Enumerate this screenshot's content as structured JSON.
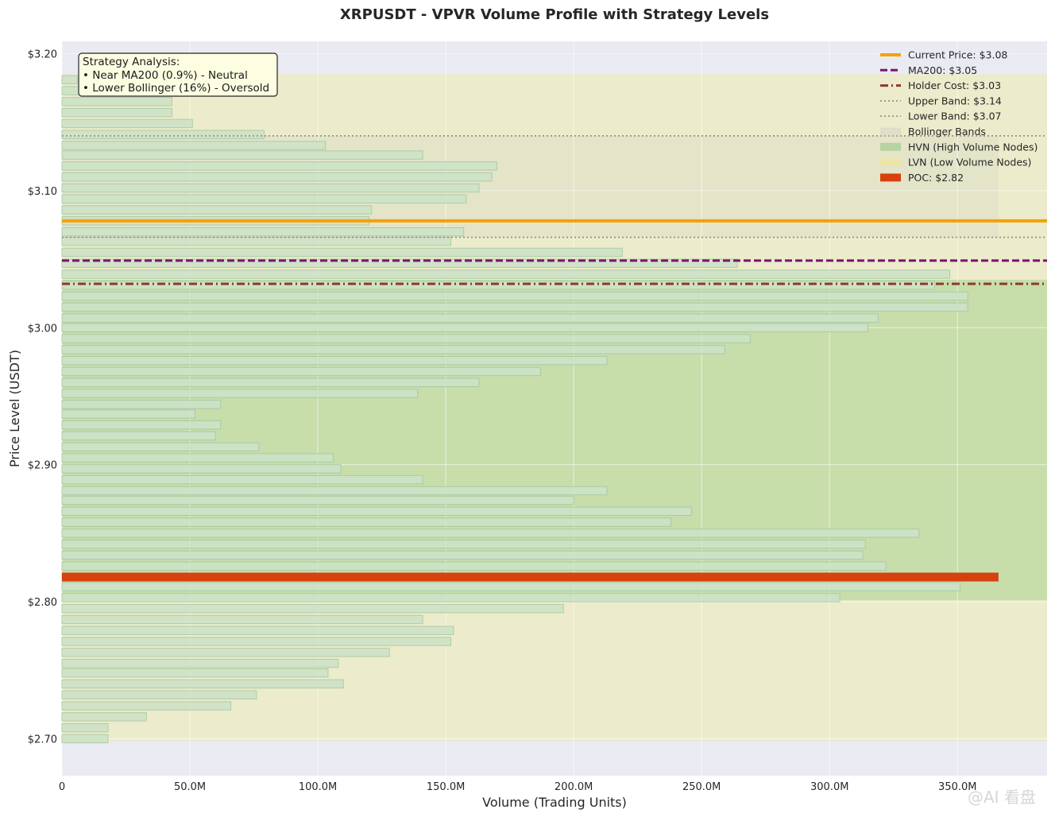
{
  "chart_data": {
    "type": "bar",
    "orientation": "horizontal",
    "title": "XRPUSDT - VPVR Volume Profile with Strategy Levels",
    "xlabel": "Volume (Trading Units)",
    "ylabel": "Price Level (USDT)",
    "xlim": [
      0,
      385
    ],
    "ylim": [
      2.673,
      3.209
    ],
    "x_unit": "millions",
    "xticks": [
      0,
      50,
      100,
      150,
      200,
      250,
      300,
      350
    ],
    "xtick_labels": [
      "0",
      "50.0M",
      "100.0M",
      "150.0M",
      "200.0M",
      "250.0M",
      "300.0M",
      "350.0M"
    ],
    "yticks": [
      2.7,
      2.8,
      2.9,
      3.0,
      3.1,
      3.2
    ],
    "ytick_labels": [
      "$2.70",
      "$2.80",
      "$2.90",
      "$3.00",
      "$3.10",
      "$3.20"
    ],
    "grid": true,
    "legend_position": "top-right",
    "volume_profile": {
      "prices": [
        2.7,
        2.708,
        2.716,
        2.724,
        2.732,
        2.74,
        2.748,
        2.755,
        2.763,
        2.771,
        2.779,
        2.787,
        2.795,
        2.803,
        2.811,
        2.818,
        2.826,
        2.834,
        2.842,
        2.85,
        2.858,
        2.866,
        2.874,
        2.881,
        2.889,
        2.897,
        2.905,
        2.913,
        2.921,
        2.929,
        2.937,
        2.944,
        2.952,
        2.96,
        2.968,
        2.976,
        2.984,
        2.992,
        3.0,
        3.007,
        3.015,
        3.023,
        3.031,
        3.039,
        3.047,
        3.055,
        3.063,
        3.07,
        3.078,
        3.086,
        3.094,
        3.102,
        3.11,
        3.118,
        3.126,
        3.133,
        3.141,
        3.149,
        3.157,
        3.165,
        3.173,
        3.181
      ],
      "volumes": [
        18,
        18,
        33,
        66,
        76,
        110,
        104,
        108,
        128,
        152,
        153,
        141,
        196,
        304,
        351,
        366,
        322,
        313,
        314,
        335,
        238,
        246,
        200,
        213,
        141,
        109,
        106,
        77,
        60,
        62,
        52,
        62,
        139,
        163,
        187,
        213,
        259,
        269,
        315,
        319,
        354,
        354,
        341,
        347,
        264,
        219,
        152,
        157,
        120,
        121,
        158,
        163,
        168,
        170,
        141,
        103,
        79,
        51,
        43,
        43,
        43,
        6
      ]
    },
    "levels": [
      {
        "name": "Current Price",
        "label": "Current Price: $3.08",
        "value": 3.078,
        "color": "#f5a100",
        "style": "solid"
      },
      {
        "name": "MA200",
        "label": "MA200: $3.05",
        "value": 3.049,
        "color": "#7b1270",
        "style": "dashed"
      },
      {
        "name": "Holder Cost",
        "label": "Holder Cost: $3.03",
        "value": 3.032,
        "color": "#8b3a2e",
        "style": "dashdot"
      },
      {
        "name": "Upper Band",
        "label": "Upper Band: $3.14",
        "value": 3.14,
        "color": "#8c8c80",
        "style": "dotted"
      },
      {
        "name": "Lower Band",
        "label": "Lower Band: $3.07",
        "value": 3.066,
        "color": "#8c8c80",
        "style": "dotted"
      }
    ],
    "bollinger_bands": {
      "label": "Bollinger Bands",
      "upper": 3.14,
      "lower": 3.066,
      "x_max": 366,
      "color": "#dcdcc8"
    },
    "hvn_zone": {
      "label": "HVN (High Volume Nodes)",
      "from": 2.801,
      "to": 3.035,
      "color": "#c5dca8"
    },
    "lvn_zone": {
      "label": "LVN (Low Volume Nodes)",
      "from": 2.698,
      "to": 3.185,
      "color": "#ecebc8"
    },
    "poc": {
      "label": "POC: $2.82",
      "value": 2.818,
      "volume": 366,
      "color": "#d8400e"
    },
    "annotation": {
      "title": "Strategy Analysis:",
      "lines": [
        "• Near MA200 (0.9%) - Neutral",
        "• Lower Bollinger (16%) - Oversold"
      ]
    },
    "watermark": "@AI 看盘"
  },
  "colors": {
    "background": "#ffffff",
    "plot_background": "#eaeaf2",
    "bar_fill": "#cde3c7",
    "bar_stroke": "#a9c9a4",
    "grid": "#ffffff",
    "annotation_fill": "#fdfde2"
  }
}
